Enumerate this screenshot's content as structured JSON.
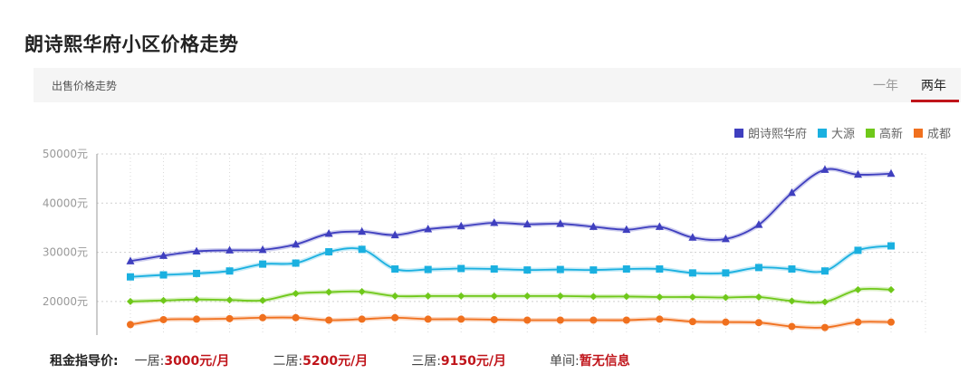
{
  "title": "朗诗熙华府小区价格走势",
  "tabbar": {
    "section_label": "出售价格走势",
    "tabs": [
      "一年",
      "两年"
    ],
    "active_tab": "两年"
  },
  "rent": {
    "label": "租金指导价:",
    "items": [
      {
        "key": "一居:",
        "value": "3000元/月"
      },
      {
        "key": "二居:",
        "value": "5200元/月"
      },
      {
        "key": "三居:",
        "value": "9150元/月"
      },
      {
        "key": "单间:",
        "value": "暂无信息"
      }
    ]
  },
  "chart_data": {
    "type": "line",
    "ylim": [
      15000,
      50000
    ],
    "yticks": [
      20000,
      30000,
      40000,
      50000
    ],
    "ytick_labels": [
      "20000元",
      "30000元",
      "40000元",
      "50000元"
    ],
    "grid": true,
    "legend_position": "top-right",
    "series": [
      {
        "name": "朗诗熙华府",
        "color": "#3f3fbf",
        "marker": "triangle",
        "values": [
          28200,
          29300,
          30200,
          30400,
          30500,
          31600,
          33800,
          34200,
          33500,
          34700,
          35300,
          36000,
          35700,
          35800,
          35200,
          34600,
          35200,
          33000,
          32700,
          35600,
          42100,
          46800,
          45800,
          46000
        ]
      },
      {
        "name": "大源",
        "color": "#1ab0e0",
        "marker": "square",
        "values": [
          25000,
          25400,
          25700,
          26200,
          27600,
          27800,
          30100,
          30600,
          26600,
          26500,
          26700,
          26600,
          26400,
          26500,
          26400,
          26600,
          26600,
          25800,
          25800,
          26900,
          26600,
          26200,
          30400,
          31300
        ]
      },
      {
        "name": "高新",
        "color": "#6fc81a",
        "marker": "diamond",
        "values": [
          20000,
          20200,
          20400,
          20300,
          20200,
          21600,
          21900,
          22000,
          21100,
          21100,
          21100,
          21100,
          21100,
          21100,
          21000,
          21000,
          20900,
          20900,
          20800,
          20900,
          20100,
          19900,
          22400,
          22400
        ]
      },
      {
        "name": "成都",
        "color": "#f0701e",
        "marker": "circle",
        "values": [
          15300,
          16300,
          16400,
          16500,
          16700,
          16700,
          16200,
          16400,
          16700,
          16400,
          16400,
          16300,
          16200,
          16200,
          16200,
          16200,
          16400,
          15900,
          15800,
          15700,
          14900,
          14700,
          15800,
          15800
        ]
      }
    ]
  }
}
